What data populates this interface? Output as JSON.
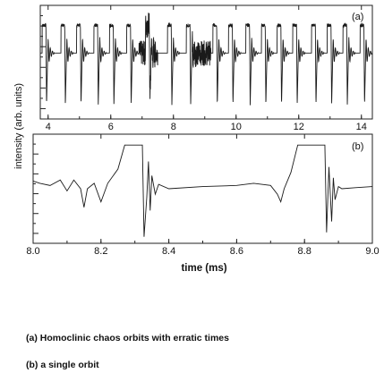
{
  "chart_data": [
    {
      "type": "line",
      "panel_label": "(a)",
      "title": "",
      "xlabel": "",
      "ylabel": "intensity (arb. units)",
      "xlim": [
        3.75,
        14.35
      ],
      "xticks": [
        4,
        6,
        8,
        10,
        12,
        14
      ],
      "xtick_labels": [
        "4",
        "6",
        "8",
        "10",
        "12",
        "14"
      ],
      "ylim": [
        0,
        1
      ],
      "grid": false,
      "series": [
        {
          "name": "",
          "spike_times_ms": [
            3.95,
            4.55,
            5.05,
            5.6,
            6.1,
            6.65,
            7.25,
            7.95,
            8.55,
            9.4,
            9.9,
            10.45,
            10.95,
            11.45,
            11.95,
            12.55,
            13.05,
            13.55,
            14.1
          ],
          "baseline": 0.58,
          "plateau": 0.83,
          "minimum": 0.12,
          "erratic_intervals_ms": [
            [
              6.9,
              7.5
            ],
            [
              8.6,
              9.2
            ]
          ]
        }
      ]
    },
    {
      "type": "line",
      "panel_label": "(b)",
      "title": "",
      "xlabel": "time (ms)",
      "ylabel": "",
      "xlim": [
        8.0,
        9.0
      ],
      "xticks": [
        8.0,
        8.2,
        8.4,
        8.6,
        8.8,
        9.0
      ],
      "xtick_labels": [
        "8.0",
        "8.2",
        "8.4",
        "8.6",
        "8.8",
        "9.0"
      ],
      "ylim": [
        0,
        1
      ],
      "grid": false,
      "series": [
        {
          "name": "",
          "x": [
            8.0,
            8.02,
            8.05,
            8.08,
            8.1,
            8.12,
            8.14,
            8.15,
            8.16,
            8.18,
            8.2,
            8.22,
            8.25,
            8.27,
            8.3,
            8.322,
            8.327,
            8.335,
            8.34,
            8.345,
            8.35,
            8.36,
            8.37,
            8.4,
            8.5,
            8.6,
            8.65,
            8.7,
            8.72,
            8.73,
            8.74,
            8.76,
            8.78,
            8.8,
            8.86,
            8.865,
            8.872,
            8.88,
            8.885,
            8.89,
            8.9,
            8.91,
            8.95,
            9.0
          ],
          "y": [
            0.57,
            0.55,
            0.53,
            0.58,
            0.48,
            0.58,
            0.5,
            0.33,
            0.5,
            0.55,
            0.38,
            0.55,
            0.68,
            0.9,
            0.9,
            0.9,
            0.06,
            0.42,
            0.75,
            0.3,
            0.62,
            0.45,
            0.54,
            0.5,
            0.52,
            0.53,
            0.55,
            0.53,
            0.45,
            0.38,
            0.5,
            0.65,
            0.9,
            0.9,
            0.9,
            0.1,
            0.7,
            0.2,
            0.6,
            0.4,
            0.52,
            0.5,
            0.51,
            0.52
          ]
        }
      ]
    }
  ],
  "captions": [
    "(a) Homoclinic chaos orbits with erratic times",
    "(b) a single orbit"
  ]
}
